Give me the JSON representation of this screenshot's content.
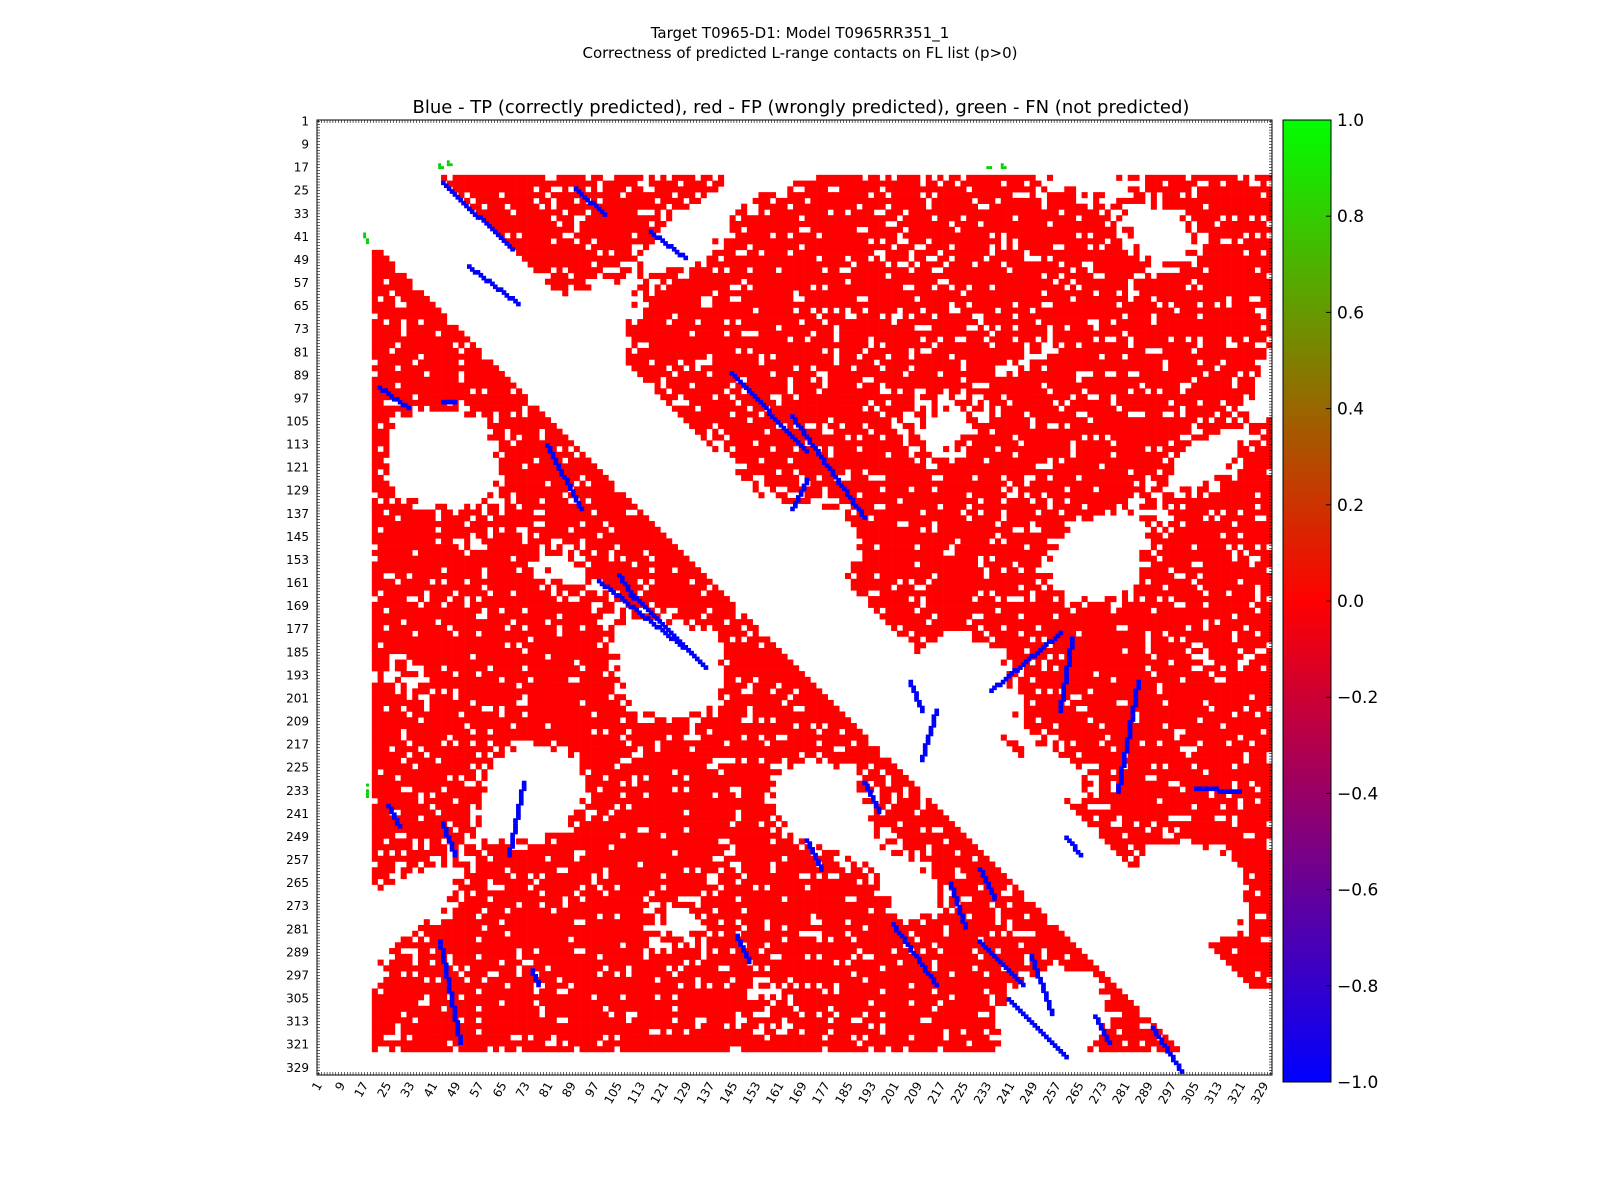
{
  "title_line1": "Target T0965-D1: Model T0965RR351_1",
  "title_line2": "Correctness of predicted L-range contacts on FL list (p>0)",
  "chart_data": {
    "type": "heatmap",
    "title": "Blue - TP (correctly predicted), red - FP (wrongly predicted), green - FN (not predicted)",
    "xlabel": "",
    "ylabel": "",
    "tick_labels": [
      "1",
      "9",
      "17",
      "25",
      "33",
      "41",
      "49",
      "57",
      "65",
      "73",
      "81",
      "89",
      "97",
      "105",
      "113",
      "121",
      "129",
      "137",
      "145",
      "153",
      "161",
      "169",
      "177",
      "185",
      "193",
      "201",
      "209",
      "217",
      "225",
      "233",
      "241",
      "249",
      "257",
      "265",
      "273",
      "281",
      "289",
      "297",
      "305",
      "313",
      "321",
      "329"
    ],
    "residue_range": [
      1,
      331
    ],
    "colorbar": {
      "ticks": [
        "1.0",
        "0.8",
        "0.6",
        "0.4",
        "0.2",
        "0.0",
        "−0.2",
        "−0.4",
        "−0.6",
        "−0.8",
        "−1.0"
      ],
      "colors": [
        "#00ff00",
        "#ff0000",
        "#0000ff"
      ]
    },
    "legend": {
      "tp": "Blue - TP (correctly predicted)",
      "fp": "red - FP (wrongly predicted)",
      "fn": "green - FN (not predicted)"
    },
    "predicted_region_rows": [
      20,
      322
    ],
    "diagonal_gap_upper": [
      44,
      301
    ],
    "tp_segments": [
      [
        22,
        44,
        45,
        68
      ],
      [
        24,
        90,
        33,
        100
      ],
      [
        39,
        116,
        48,
        128
      ],
      [
        51,
        53,
        64,
        70
      ],
      [
        93,
        22,
        100,
        32
      ],
      [
        98,
        44,
        98,
        48
      ],
      [
        88,
        144,
        115,
        170
      ],
      [
        103,
        165,
        138,
        190
      ],
      [
        135,
        165,
        125,
        170
      ],
      [
        113,
        80,
        135,
        92
      ],
      [
        160,
        98,
        185,
        130
      ],
      [
        165,
        110,
        190,
        135
      ],
      [
        198,
        234,
        178,
        258
      ],
      [
        195,
        206,
        205,
        210
      ],
      [
        205,
        258,
        180,
        262
      ],
      [
        233,
        278,
        195,
        285
      ],
      [
        222,
        210,
        205,
        215
      ],
      [
        230,
        190,
        240,
        195
      ],
      [
        250,
        170,
        260,
        175
      ],
      [
        249,
        260,
        255,
        265
      ],
      [
        260,
        230,
        270,
        235
      ],
      [
        265,
        220,
        280,
        225
      ],
      [
        279,
        200,
        300,
        215
      ],
      [
        285,
        230,
        300,
        245
      ],
      [
        290,
        248,
        310,
        255
      ],
      [
        305,
        240,
        325,
        260
      ],
      [
        311,
        270,
        320,
        275
      ],
      [
        315,
        290,
        330,
        300
      ],
      [
        232,
        305,
        233,
        320
      ],
      [
        238,
        25,
        245,
        29
      ],
      [
        244,
        44,
        255,
        48
      ],
      [
        255,
        67,
        230,
        72
      ],
      [
        285,
        43,
        320,
        50
      ],
      [
        295,
        75,
        300,
        77
      ],
      [
        283,
        146,
        292,
        150
      ],
      [
        158,
        105,
        166,
        110
      ]
    ],
    "fn_points": [
      [
        40,
        17
      ],
      [
        41,
        17
      ],
      [
        42,
        18
      ],
      [
        43,
        18
      ],
      [
        231,
        18
      ],
      [
        233,
        18
      ],
      [
        234,
        18
      ],
      [
        235,
        18
      ],
      [
        16,
        43
      ],
      [
        17,
        43
      ],
      [
        17,
        44
      ],
      [
        15,
        46
      ],
      [
        16,
        46
      ],
      [
        16,
        47
      ],
      [
        17,
        233
      ],
      [
        17,
        234
      ],
      [
        16,
        238
      ],
      [
        17,
        238
      ],
      [
        17,
        239
      ]
    ]
  }
}
